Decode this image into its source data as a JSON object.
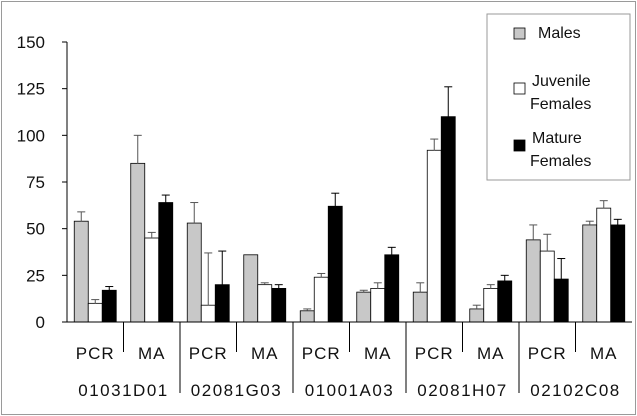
{
  "chart_data": {
    "type": "bar",
    "title": "",
    "xlabel": "",
    "ylabel": "",
    "ylim": [
      0,
      150
    ],
    "yticks": [
      "0",
      "25",
      "50",
      "75",
      "100",
      "125",
      "150"
    ],
    "grid": false,
    "legend_placement": "top-right",
    "groups": [
      {
        "name": "01031D01",
        "methods": [
          "PCR",
          "MA"
        ]
      },
      {
        "name": "02081G03",
        "methods": [
          "PCR",
          "MA"
        ]
      },
      {
        "name": "01001A03",
        "methods": [
          "PCR",
          "MA"
        ]
      },
      {
        "name": "02081H07",
        "methods": [
          "PCR",
          "MA"
        ]
      },
      {
        "name": "02102C08",
        "methods": [
          "PCR",
          "MA"
        ]
      }
    ],
    "categories": [
      "01031D01 PCR",
      "01031D01 MA",
      "02081G03 PCR",
      "02081G03 MA",
      "01001A03 PCR",
      "01001A03 MA",
      "02081H07 PCR",
      "02081H07 MA",
      "02102C08 PCR",
      "02102C08 MA"
    ],
    "series": [
      {
        "name": "Males",
        "legend_lines": [
          "Males"
        ],
        "color": "#c8c8c8",
        "values": [
          54,
          85,
          53,
          36,
          6,
          16,
          16,
          7,
          44,
          52
        ],
        "errors": [
          5,
          15,
          11,
          0,
          1,
          1,
          5,
          2,
          8,
          2
        ]
      },
      {
        "name": "Juvenile Females",
        "legend_lines": [
          "Juvenile",
          "Females"
        ],
        "color": "#ffffff",
        "values": [
          10,
          45,
          9,
          20,
          24,
          18,
          92,
          18,
          38,
          61
        ],
        "errors": [
          2,
          3,
          28,
          1,
          2,
          3,
          6,
          2,
          9,
          4
        ]
      },
      {
        "name": "Mature Females",
        "legend_lines": [
          "Mature",
          "Females"
        ],
        "color": "#000000",
        "values": [
          17,
          64,
          20,
          18,
          62,
          36,
          110,
          22,
          23,
          52
        ],
        "errors": [
          2,
          4,
          18,
          2,
          7,
          4,
          16,
          3,
          11,
          3
        ]
      }
    ]
  }
}
